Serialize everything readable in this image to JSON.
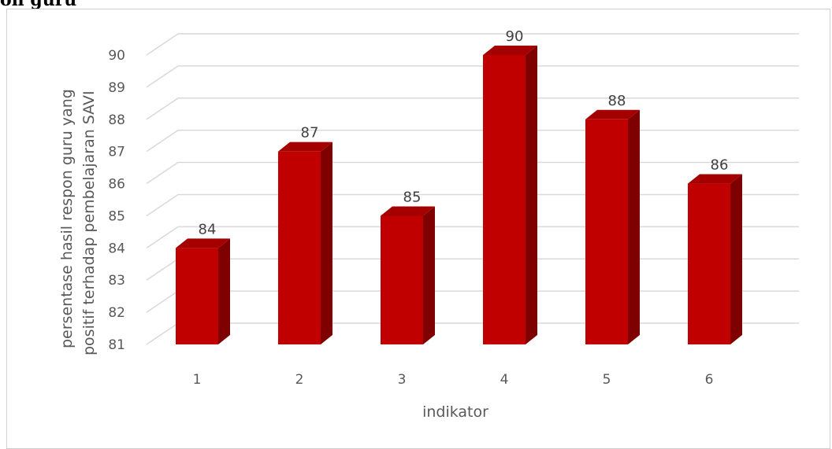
{
  "page": {
    "cut_title": "on guru"
  },
  "chart_data": {
    "type": "bar",
    "style": "3d-column",
    "categories": [
      "1",
      "2",
      "3",
      "4",
      "5",
      "6"
    ],
    "values": [
      84,
      87,
      85,
      90,
      88,
      86
    ],
    "data_labels": [
      "84",
      "87",
      "85",
      "90",
      "88",
      "86"
    ],
    "y_ticks": [
      "81",
      "82",
      "83",
      "84",
      "85",
      "86",
      "87",
      "88",
      "89",
      "90"
    ],
    "ylim": [
      81,
      90
    ],
    "xlabel": "indikator",
    "ylabel_lines": [
      "persentase hasil respon guru yang",
      "positif terhadap pembelajaran SAVI"
    ],
    "grid": true,
    "colors": {
      "front": "#c00000",
      "side": "#7f0000",
      "top": "#a50000",
      "grid": "#d9d9d9",
      "axis_text": "#595959"
    }
  }
}
